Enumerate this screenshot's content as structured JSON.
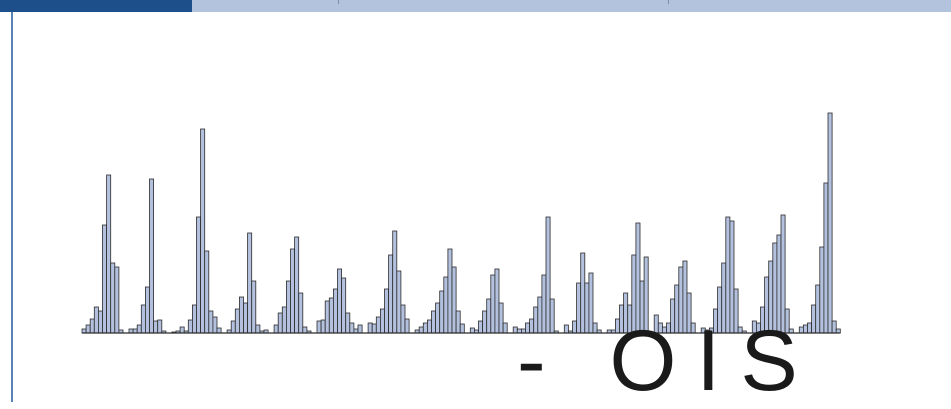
{
  "header": {
    "accent_color": "#1d4f8a",
    "bar_color": "#b3c3dd"
  },
  "caption": {
    "text": "- OIS"
  },
  "chart_data": {
    "type": "bar",
    "title": "",
    "xlabel": "",
    "ylabel": "",
    "grid": false,
    "bar_fill": "#b3c1de",
    "bar_stroke": "#2b2b2b",
    "baseline_color": "#2b2b2b",
    "ylim": [
      0,
      225
    ],
    "groups": [
      [
        4,
        8,
        14,
        26,
        22,
        108,
        158,
        70,
        66,
        3
      ],
      [
        4,
        4,
        8,
        28,
        46,
        154,
        12,
        13,
        2
      ],
      [
        1,
        2,
        6,
        2,
        13,
        28,
        116,
        204,
        82,
        22,
        16,
        5
      ],
      [
        3,
        12,
        24,
        36,
        30,
        100,
        52,
        8,
        2,
        3
      ],
      [
        8,
        20,
        26,
        52,
        84,
        96,
        40,
        6,
        2
      ],
      [
        12,
        13,
        32,
        35,
        44,
        64,
        55,
        20,
        10,
        4,
        8
      ],
      [
        10,
        9,
        16,
        24,
        44,
        78,
        102,
        62,
        28,
        14
      ],
      [
        3,
        6,
        10,
        13,
        22,
        30,
        42,
        56,
        84,
        66,
        22,
        9
      ],
      [
        5,
        3,
        12,
        22,
        34,
        58,
        64,
        30,
        10
      ],
      [
        6,
        4,
        4,
        10,
        14,
        26,
        36,
        58,
        116,
        34,
        2
      ],
      [
        8,
        2,
        12,
        50,
        80,
        50,
        60,
        10,
        3
      ],
      [
        3,
        3,
        14,
        28,
        40,
        28,
        78,
        110,
        52,
        76
      ],
      [
        18,
        10,
        6,
        10,
        34,
        48,
        66,
        72,
        40,
        10
      ],
      [
        5,
        3,
        5,
        24,
        46,
        70,
        116,
        112,
        44,
        6,
        2
      ],
      [
        12,
        10,
        26,
        56,
        72,
        90,
        98,
        118,
        24,
        4
      ],
      [
        6,
        8,
        10,
        28,
        48,
        86,
        150,
        220,
        12,
        4
      ]
    ]
  }
}
